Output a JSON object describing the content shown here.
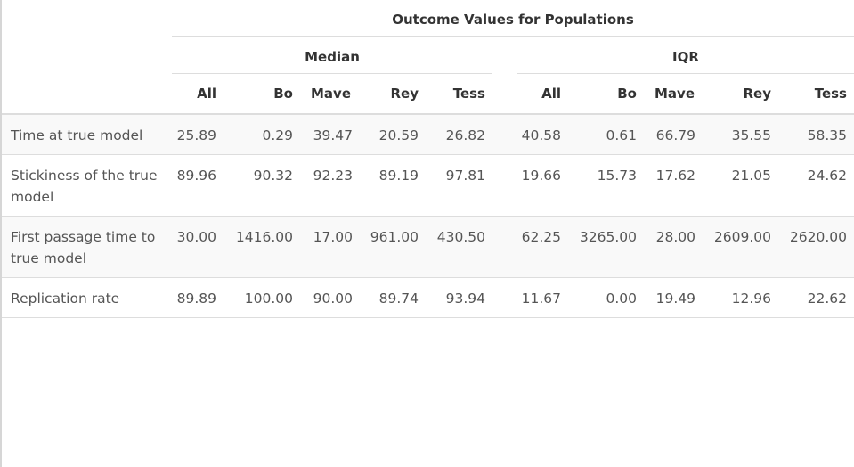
{
  "table": {
    "title": "Outcome Values for Populations",
    "groups": {
      "median": "Median",
      "iqr": "IQR"
    },
    "columns": [
      "All",
      "Bo",
      "Mave",
      "Rey",
      "Tess",
      "All",
      "Bo",
      "Mave",
      "Rey",
      "Tess"
    ],
    "rows": [
      {
        "label": "Time at true model",
        "values": [
          "25.89",
          "0.29",
          "39.47",
          "20.59",
          "26.82",
          "40.58",
          "0.61",
          "66.79",
          "35.55",
          "58.35"
        ]
      },
      {
        "label": "Stickiness of the true model",
        "values": [
          "89.96",
          "90.32",
          "92.23",
          "89.19",
          "97.81",
          "19.66",
          "15.73",
          "17.62",
          "21.05",
          "24.62"
        ]
      },
      {
        "label": "First passage time to true model",
        "values": [
          "30.00",
          "1416.00",
          "17.00",
          "961.00",
          "430.50",
          "62.25",
          "3265.00",
          "28.00",
          "2609.00",
          "2620.00"
        ]
      },
      {
        "label": "Replication rate",
        "values": [
          "89.89",
          "100.00",
          "90.00",
          "89.74",
          "93.94",
          "11.67",
          "0.00",
          "19.49",
          "12.96",
          "22.62"
        ]
      }
    ]
  }
}
